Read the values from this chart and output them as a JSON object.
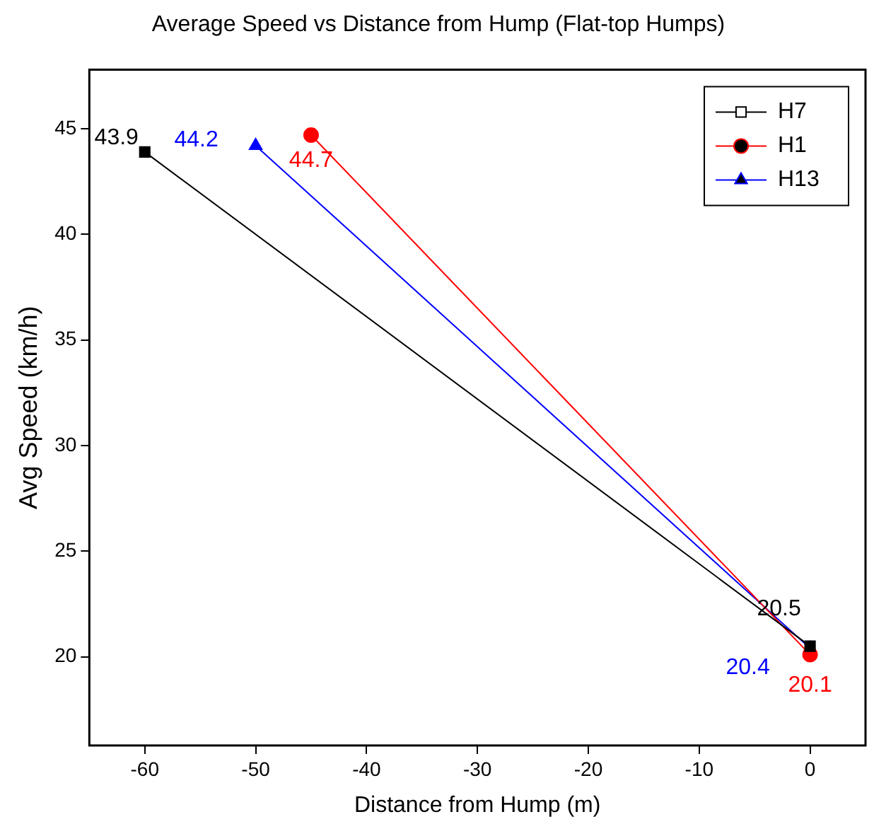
{
  "chart_data": {
    "type": "line",
    "title": "Average Speed vs Distance from Hump (Flat-top Humps)",
    "xlabel": "Distance from Hump (m)",
    "ylabel": "Avg Speed (km/h)",
    "xlim": [
      -65,
      5
    ],
    "xticks": [
      -60,
      -50,
      -40,
      -30,
      -20,
      -10,
      0
    ],
    "ylim": [
      15.8,
      47.8
    ],
    "yticks": [
      20,
      25,
      30,
      35,
      40,
      45
    ],
    "grid": false,
    "legend": "top right",
    "data_labels": true,
    "series": [
      {
        "name": "H7",
        "color": "#000000",
        "marker": "square",
        "x": [
          -60,
          0
        ],
        "values": [
          43.9,
          20.5
        ]
      },
      {
        "name": "H1",
        "color": "#ff0000",
        "marker": "circle",
        "x": [
          -45,
          0
        ],
        "values": [
          44.7,
          20.1
        ]
      },
      {
        "name": "H13",
        "color": "#0000ff",
        "marker": "triangle",
        "x": [
          -50,
          0
        ],
        "values": [
          44.2,
          20.4
        ]
      }
    ]
  }
}
